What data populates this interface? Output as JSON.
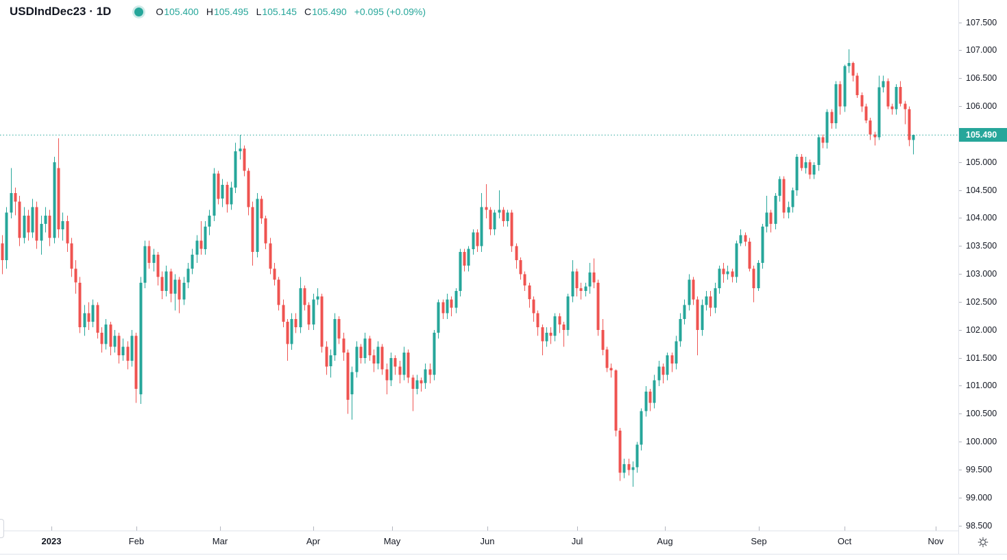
{
  "header": {
    "title": "USDIndDec23 · 1D",
    "ohlc": [
      {
        "label": "O",
        "value": "105.400"
      },
      {
        "label": "H",
        "value": "105.495"
      },
      {
        "label": "L",
        "value": "105.145"
      },
      {
        "label": "C",
        "value": "105.490"
      }
    ],
    "change": "+0.095 (+0.09%)"
  },
  "colors": {
    "up": "#26a69a",
    "down": "#ef5350",
    "text": "#131722",
    "muted": "#787b86",
    "tick": "#b2b5be",
    "border": "#e0e3eb",
    "badge_bg": "#26a69a",
    "badge_text": "#ffffff",
    "background": "#ffffff"
  },
  "icons": {
    "status_dot": "filled-circle",
    "settings": "gear"
  },
  "chart_data": {
    "type": "candlestick",
    "title": "USDIndDec23 · 1D",
    "symbol": "USDIndDec23",
    "interval": "1D",
    "grid": "off",
    "legend_position": "none",
    "last_price": 105.49,
    "last_price_label": "105.490",
    "price_range": [
      98.5,
      107.5
    ],
    "time_range": [
      "Dec 2022",
      "Nov 2023"
    ],
    "y_ticks": [
      "107.500",
      "107.000",
      "106.500",
      "106.000",
      "105.000",
      "104.500",
      "104.000",
      "103.500",
      "103.000",
      "102.500",
      "102.000",
      "101.500",
      "101.000",
      "100.500",
      "100.000",
      "99.500",
      "99.000",
      "98.500"
    ],
    "x_ticks": [
      {
        "label": "2023",
        "x": 75,
        "bold": true
      },
      {
        "label": "Feb",
        "x": 199,
        "bold": false
      },
      {
        "label": "Mar",
        "x": 321,
        "bold": false
      },
      {
        "label": "Apr",
        "x": 457,
        "bold": false
      },
      {
        "label": "May",
        "x": 572,
        "bold": false
      },
      {
        "label": "Jun",
        "x": 711,
        "bold": false
      },
      {
        "label": "Jul",
        "x": 842,
        "bold": false
      },
      {
        "label": "Aug",
        "x": 970,
        "bold": false
      },
      {
        "label": "Sep",
        "x": 1107,
        "bold": false
      },
      {
        "label": "Oct",
        "x": 1232,
        "bold": false
      },
      {
        "label": "Nov",
        "x": 1365,
        "bold": false
      }
    ],
    "candles": [
      [
        103.55,
        103.7,
        103.0,
        103.25
      ],
      [
        103.25,
        104.2,
        103.1,
        104.1
      ],
      [
        104.1,
        104.9,
        104.0,
        104.45
      ],
      [
        104.45,
        104.55,
        104.05,
        104.3
      ],
      [
        104.3,
        104.4,
        103.5,
        103.65
      ],
      [
        103.65,
        104.2,
        103.55,
        104.05
      ],
      [
        104.05,
        104.15,
        103.6,
        103.75
      ],
      [
        103.75,
        104.35,
        103.65,
        104.2
      ],
      [
        104.2,
        104.3,
        103.45,
        103.6
      ],
      [
        103.6,
        104.05,
        103.35,
        103.9
      ],
      [
        103.9,
        104.2,
        103.75,
        104.05
      ],
      [
        104.05,
        104.15,
        103.5,
        103.65
      ],
      [
        103.65,
        105.1,
        103.55,
        105.0
      ],
      [
        104.9,
        105.43,
        103.65,
        103.8
      ],
      [
        103.8,
        104.1,
        103.6,
        103.95
      ],
      [
        103.95,
        104.05,
        103.4,
        103.55
      ],
      [
        103.55,
        103.65,
        102.95,
        103.1
      ],
      [
        103.1,
        103.25,
        102.65,
        102.85
      ],
      [
        102.85,
        102.95,
        101.95,
        102.05
      ],
      [
        102.05,
        102.45,
        101.9,
        102.3
      ],
      [
        102.3,
        102.5,
        102.0,
        102.15
      ],
      [
        102.15,
        102.55,
        102.05,
        102.45
      ],
      [
        102.45,
        102.5,
        101.85,
        101.95
      ],
      [
        101.95,
        102.05,
        101.6,
        101.75
      ],
      [
        101.75,
        102.2,
        101.65,
        102.1
      ],
      [
        102.1,
        102.15,
        101.55,
        101.7
      ],
      [
        101.7,
        102.0,
        101.6,
        101.9
      ],
      [
        101.9,
        101.95,
        101.4,
        101.55
      ],
      [
        101.55,
        101.85,
        101.45,
        101.7
      ],
      [
        101.7,
        101.8,
        101.3,
        101.45
      ],
      [
        101.45,
        102.0,
        101.35,
        101.9
      ],
      [
        101.9,
        101.95,
        100.7,
        100.95
      ],
      [
        100.85,
        102.95,
        100.68,
        102.85
      ],
      [
        102.85,
        103.6,
        102.75,
        103.5
      ],
      [
        103.5,
        103.6,
        103.1,
        103.2
      ],
      [
        103.2,
        103.45,
        103.05,
        103.35
      ],
      [
        103.35,
        103.4,
        102.8,
        102.95
      ],
      [
        102.95,
        103.05,
        102.55,
        102.7
      ],
      [
        102.7,
        103.15,
        102.6,
        103.05
      ],
      [
        103.05,
        103.1,
        102.5,
        102.65
      ],
      [
        102.65,
        103.0,
        102.35,
        102.9
      ],
      [
        102.9,
        102.95,
        102.3,
        102.55
      ],
      [
        102.55,
        102.95,
        102.45,
        102.85
      ],
      [
        102.85,
        103.2,
        102.75,
        103.1
      ],
      [
        103.1,
        103.45,
        103.0,
        103.35
      ],
      [
        103.35,
        103.7,
        103.2,
        103.6
      ],
      [
        103.6,
        103.95,
        103.35,
        103.45
      ],
      [
        103.45,
        103.95,
        103.35,
        103.85
      ],
      [
        103.85,
        104.15,
        103.7,
        104.05
      ],
      [
        104.05,
        104.9,
        103.95,
        104.8
      ],
      [
        104.8,
        104.85,
        104.25,
        104.35
      ],
      [
        104.35,
        104.7,
        104.2,
        104.6
      ],
      [
        104.6,
        104.65,
        104.1,
        104.25
      ],
      [
        104.25,
        104.65,
        104.15,
        104.55
      ],
      [
        104.55,
        105.35,
        104.45,
        105.2
      ],
      [
        105.2,
        105.49,
        105.05,
        105.25
      ],
      [
        105.25,
        105.3,
        104.75,
        104.85
      ],
      [
        104.85,
        104.9,
        104.05,
        104.2
      ],
      [
        104.2,
        104.3,
        103.15,
        103.4
      ],
      [
        103.4,
        104.45,
        103.3,
        104.35
      ],
      [
        104.35,
        104.4,
        103.9,
        104.0
      ],
      [
        104.0,
        104.05,
        103.45,
        103.55
      ],
      [
        103.55,
        103.65,
        103.0,
        103.1
      ],
      [
        103.1,
        103.2,
        102.8,
        102.9
      ],
      [
        102.9,
        102.95,
        102.35,
        102.45
      ],
      [
        102.45,
        102.55,
        102.05,
        102.15
      ],
      [
        102.15,
        102.2,
        101.45,
        101.75
      ],
      [
        101.75,
        102.3,
        101.65,
        102.2
      ],
      [
        102.2,
        102.3,
        101.95,
        102.05
      ],
      [
        102.05,
        102.95,
        101.95,
        102.75
      ],
      [
        102.75,
        102.8,
        102.35,
        102.45
      ],
      [
        102.45,
        102.5,
        102.0,
        102.1
      ],
      [
        102.1,
        102.65,
        102.0,
        102.55
      ],
      [
        102.55,
        102.75,
        102.45,
        102.6
      ],
      [
        102.6,
        102.65,
        101.6,
        101.7
      ],
      [
        101.7,
        101.8,
        101.2,
        101.35
      ],
      [
        101.35,
        101.65,
        101.15,
        101.55
      ],
      [
        101.55,
        102.3,
        101.45,
        102.2
      ],
      [
        102.2,
        102.25,
        101.75,
        101.85
      ],
      [
        101.85,
        101.95,
        101.45,
        101.6
      ],
      [
        101.6,
        101.65,
        100.5,
        100.75
      ],
      [
        100.85,
        101.35,
        100.4,
        101.25
      ],
      [
        101.25,
        101.8,
        101.15,
        101.7
      ],
      [
        101.7,
        101.75,
        101.4,
        101.5
      ],
      [
        101.5,
        101.95,
        101.4,
        101.85
      ],
      [
        101.85,
        101.9,
        101.45,
        101.55
      ],
      [
        101.55,
        101.65,
        101.25,
        101.4
      ],
      [
        101.4,
        101.8,
        101.3,
        101.7
      ],
      [
        101.7,
        101.75,
        101.2,
        101.3
      ],
      [
        101.3,
        101.4,
        100.85,
        101.1
      ],
      [
        101.1,
        101.6,
        101.0,
        101.5
      ],
      [
        101.5,
        101.55,
        101.2,
        101.35
      ],
      [
        101.35,
        101.45,
        101.05,
        101.2
      ],
      [
        101.2,
        101.7,
        101.1,
        101.6
      ],
      [
        101.6,
        101.65,
        101.05,
        101.15
      ],
      [
        101.15,
        101.2,
        100.55,
        100.95
      ],
      [
        100.95,
        101.2,
        100.85,
        101.1
      ],
      [
        101.1,
        101.15,
        100.9,
        101.05
      ],
      [
        101.05,
        101.4,
        100.95,
        101.3
      ],
      [
        101.3,
        101.4,
        101.05,
        101.2
      ],
      [
        101.2,
        102.0,
        101.1,
        101.95
      ],
      [
        101.95,
        102.55,
        101.85,
        102.5
      ],
      [
        102.5,
        102.55,
        102.2,
        102.3
      ],
      [
        102.3,
        102.65,
        102.2,
        102.55
      ],
      [
        102.55,
        102.6,
        102.25,
        102.4
      ],
      [
        102.4,
        102.75,
        102.3,
        102.7
      ],
      [
        102.7,
        103.45,
        102.6,
        103.4
      ],
      [
        103.4,
        103.45,
        103.05,
        103.15
      ],
      [
        103.15,
        103.5,
        103.05,
        103.45
      ],
      [
        103.45,
        103.8,
        103.35,
        103.75
      ],
      [
        103.75,
        103.8,
        103.4,
        103.5
      ],
      [
        103.5,
        104.45,
        103.4,
        104.2
      ],
      [
        104.2,
        104.61,
        104.0,
        104.15
      ],
      [
        104.15,
        104.2,
        103.7,
        103.8
      ],
      [
        103.8,
        104.15,
        103.7,
        104.1
      ],
      [
        104.1,
        104.5,
        104.0,
        104.15
      ],
      [
        104.15,
        104.2,
        103.85,
        103.95
      ],
      [
        103.95,
        104.15,
        103.85,
        104.1
      ],
      [
        104.1,
        104.15,
        103.4,
        103.5
      ],
      [
        103.5,
        103.55,
        103.1,
        103.25
      ],
      [
        103.25,
        103.3,
        102.9,
        103.0
      ],
      [
        103.0,
        103.05,
        102.7,
        102.8
      ],
      [
        102.8,
        102.85,
        102.4,
        102.55
      ],
      [
        102.55,
        102.6,
        102.15,
        102.3
      ],
      [
        102.3,
        102.35,
        101.9,
        102.05
      ],
      [
        102.05,
        102.1,
        101.55,
        101.8
      ],
      [
        101.8,
        102.05,
        101.7,
        101.95
      ],
      [
        101.95,
        102.05,
        101.75,
        101.9
      ],
      [
        101.9,
        102.3,
        101.8,
        102.25
      ],
      [
        102.25,
        102.3,
        101.95,
        102.1
      ],
      [
        102.1,
        102.15,
        101.7,
        102.0
      ],
      [
        102.0,
        102.65,
        101.9,
        102.6
      ],
      [
        102.6,
        103.25,
        102.5,
        103.05
      ],
      [
        103.05,
        103.1,
        102.6,
        102.75
      ],
      [
        102.75,
        102.85,
        102.55,
        102.7
      ],
      [
        102.7,
        102.85,
        102.6,
        102.78
      ],
      [
        102.78,
        103.2,
        102.65,
        103.03
      ],
      [
        103.03,
        103.28,
        102.75,
        102.85
      ],
      [
        102.85,
        102.9,
        101.9,
        102.0
      ],
      [
        102.0,
        102.2,
        101.55,
        101.65
      ],
      [
        101.65,
        101.7,
        101.25,
        101.32
      ],
      [
        101.32,
        101.4,
        101.15,
        101.28
      ],
      [
        101.28,
        101.3,
        100.1,
        100.2
      ],
      [
        100.2,
        100.25,
        99.3,
        99.45
      ],
      [
        99.45,
        99.7,
        99.35,
        99.6
      ],
      [
        99.6,
        99.7,
        99.4,
        99.5
      ],
      [
        99.5,
        99.65,
        99.2,
        99.55
      ],
      [
        99.55,
        100.0,
        99.45,
        99.95
      ],
      [
        99.95,
        100.6,
        99.85,
        100.55
      ],
      [
        100.55,
        101.0,
        100.45,
        100.9
      ],
      [
        100.9,
        100.95,
        100.55,
        100.7
      ],
      [
        100.7,
        101.2,
        100.6,
        101.1
      ],
      [
        101.1,
        101.45,
        101.0,
        101.35
      ],
      [
        101.35,
        101.4,
        101.05,
        101.2
      ],
      [
        101.2,
        101.6,
        101.1,
        101.55
      ],
      [
        101.55,
        101.6,
        101.25,
        101.4
      ],
      [
        101.4,
        101.9,
        101.3,
        101.8
      ],
      [
        101.8,
        102.3,
        101.7,
        102.2
      ],
      [
        102.2,
        102.55,
        102.1,
        102.45
      ],
      [
        102.45,
        103.0,
        102.35,
        102.9
      ],
      [
        102.9,
        102.95,
        102.45,
        102.55
      ],
      [
        102.55,
        102.6,
        101.55,
        102.0
      ],
      [
        102.0,
        102.55,
        101.9,
        102.45
      ],
      [
        102.45,
        102.7,
        102.35,
        102.6
      ],
      [
        102.6,
        102.7,
        102.25,
        102.4
      ],
      [
        102.4,
        102.85,
        102.3,
        102.75
      ],
      [
        102.75,
        103.15,
        102.65,
        103.1
      ],
      [
        103.1,
        103.2,
        102.85,
        103.0
      ],
      [
        103.0,
        103.15,
        102.9,
        103.05
      ],
      [
        103.05,
        103.1,
        102.85,
        102.95
      ],
      [
        102.95,
        103.6,
        102.85,
        103.55
      ],
      [
        103.55,
        103.8,
        103.5,
        103.7
      ],
      [
        103.7,
        103.75,
        103.5,
        103.58
      ],
      [
        103.58,
        103.65,
        103.05,
        103.1
      ],
      [
        103.1,
        103.15,
        102.5,
        102.75
      ],
      [
        102.75,
        103.25,
        102.7,
        103.2
      ],
      [
        103.2,
        103.9,
        103.1,
        103.85
      ],
      [
        103.85,
        104.4,
        103.75,
        104.1
      ],
      [
        104.1,
        104.15,
        103.75,
        103.9
      ],
      [
        103.9,
        104.45,
        103.8,
        104.4
      ],
      [
        104.4,
        104.75,
        104.3,
        104.7
      ],
      [
        104.7,
        104.75,
        104.0,
        104.1
      ],
      [
        104.1,
        104.3,
        104.0,
        104.2
      ],
      [
        104.2,
        104.55,
        104.1,
        104.5
      ],
      [
        104.5,
        105.15,
        104.4,
        105.1
      ],
      [
        105.1,
        105.15,
        104.85,
        104.9
      ],
      [
        104.9,
        105.1,
        104.8,
        105.0
      ],
      [
        105.0,
        105.05,
        104.7,
        104.78
      ],
      [
        104.78,
        105.0,
        104.7,
        104.95
      ],
      [
        104.95,
        105.5,
        104.85,
        105.45
      ],
      [
        105.45,
        105.5,
        105.25,
        105.35
      ],
      [
        105.35,
        105.95,
        105.25,
        105.9
      ],
      [
        105.9,
        105.95,
        105.6,
        105.7
      ],
      [
        105.7,
        106.45,
        105.6,
        106.4
      ],
      [
        106.4,
        106.45,
        105.85,
        106.0
      ],
      [
        106.0,
        106.75,
        105.9,
        106.72
      ],
      [
        106.72,
        107.02,
        106.6,
        106.78
      ],
      [
        106.78,
        106.8,
        106.45,
        106.55
      ],
      [
        106.55,
        106.6,
        106.15,
        106.2
      ],
      [
        106.2,
        106.25,
        105.9,
        106.0
      ],
      [
        106.0,
        106.05,
        105.7,
        105.75
      ],
      [
        105.75,
        105.8,
        105.4,
        105.5
      ],
      [
        105.5,
        105.55,
        105.3,
        105.45
      ],
      [
        105.45,
        106.55,
        105.4,
        106.34
      ],
      [
        106.34,
        106.55,
        106.25,
        106.45
      ],
      [
        106.45,
        106.5,
        105.95,
        106.0
      ],
      [
        106.0,
        106.05,
        105.85,
        105.95
      ],
      [
        105.95,
        106.4,
        105.85,
        106.35
      ],
      [
        106.35,
        106.45,
        106.0,
        106.05
      ],
      [
        106.05,
        106.1,
        105.68,
        105.95
      ],
      [
        105.95,
        106.0,
        105.29,
        105.4
      ],
      [
        105.4,
        105.495,
        105.145,
        105.49
      ]
    ]
  }
}
